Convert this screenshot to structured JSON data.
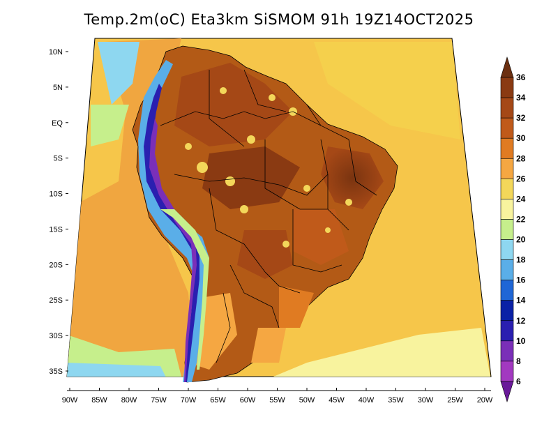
{
  "title": "Temp.2m(oC) Eta3km SiSMOM 91h 19Z14OCT2025",
  "map": {
    "lon_labels": [
      "90W",
      "85W",
      "80W",
      "75W",
      "70W",
      "65W",
      "60W",
      "55W",
      "50W",
      "45W",
      "40W",
      "35W",
      "30W",
      "25W",
      "20W"
    ],
    "lat_labels": [
      "10N",
      "5N",
      "EQ",
      "5S",
      "10S",
      "15S",
      "20S",
      "25S",
      "30S",
      "35S"
    ],
    "ocean_color": "#f5cc4a",
    "land_color": "#b35a16"
  },
  "colorbar": {
    "levels": [
      "36",
      "34",
      "32",
      "30",
      "28",
      "26",
      "24",
      "22",
      "20",
      "18",
      "16",
      "14",
      "12",
      "10",
      "8",
      "6"
    ],
    "colors": [
      "#6b2f10",
      "#8a3a12",
      "#a54816",
      "#c05a1a",
      "#e07b22",
      "#f5a742",
      "#f3d75a",
      "#f8f39e",
      "#c6ef8c",
      "#8ed7f0",
      "#5aaee8",
      "#1f66d6",
      "#0a21a6",
      "#2a1fb0",
      "#7a2fb8",
      "#a239c0",
      "#6a1a9a"
    ]
  }
}
